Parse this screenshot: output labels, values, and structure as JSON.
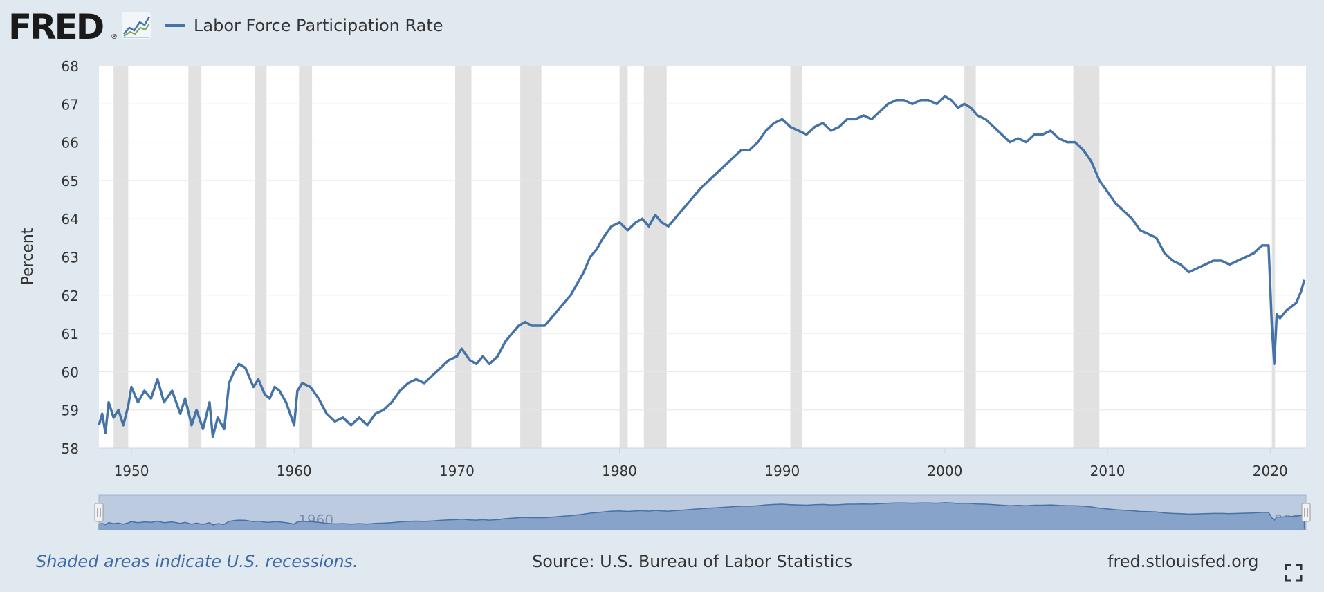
{
  "header": {
    "logo_text": "FRED",
    "logo_mark": "®",
    "logo_icon": "line-graph-icon",
    "legend_label": "Labor Force Participation Rate"
  },
  "colors": {
    "background": "#e1e9f0",
    "plot_background": "#ffffff",
    "series": "#4572a7",
    "recession": "#e1e1e1",
    "navigator": "#bccbe0",
    "navigator_area": "#88a3c9",
    "link": "#3e6aa8"
  },
  "footer": {
    "recession_note": "Shaded areas indicate U.S. recessions.",
    "source": "Source: U.S. Bureau of Labor Statistics",
    "site": "fred.stlouisfed.org",
    "fullscreen_icon": "expand-icon"
  },
  "chart_data": {
    "type": "line",
    "title": "",
    "xlabel": "",
    "ylabel": "Percent",
    "xlim": [
      1948,
      2022.2
    ],
    "ylim": [
      58,
      68
    ],
    "y_ticks": [
      58,
      59,
      60,
      61,
      62,
      63,
      64,
      65,
      66,
      67,
      68
    ],
    "x_ticks": [
      1950,
      1960,
      1970,
      1980,
      1990,
      2000,
      2010,
      2020
    ],
    "navigator_ticks": [
      "1960",
      "1980",
      "2000",
      "202"
    ],
    "grid": true,
    "legend": "top-left",
    "recessions": [
      [
        1948.9,
        1949.8
      ],
      [
        1953.5,
        1954.3
      ],
      [
        1957.6,
        1958.3
      ],
      [
        1960.3,
        1961.1
      ],
      [
        1969.9,
        1970.9
      ],
      [
        1973.9,
        1975.2
      ],
      [
        1980.0,
        1980.5
      ],
      [
        1981.5,
        1982.9
      ],
      [
        1990.5,
        1991.2
      ],
      [
        2001.2,
        2001.9
      ],
      [
        2007.9,
        2009.5
      ],
      [
        2020.1,
        2020.3
      ]
    ],
    "series": [
      {
        "name": "Labor Force Participation Rate",
        "x": [
          1948.0,
          1948.2,
          1948.4,
          1948.6,
          1948.9,
          1949.2,
          1949.5,
          1949.8,
          1950.0,
          1950.4,
          1950.8,
          1951.2,
          1951.6,
          1952.0,
          1952.5,
          1953.0,
          1953.3,
          1953.7,
          1954.0,
          1954.4,
          1954.8,
          1955.0,
          1955.3,
          1955.7,
          1956.0,
          1956.3,
          1956.6,
          1957.0,
          1957.5,
          1957.8,
          1958.2,
          1958.5,
          1958.8,
          1959.1,
          1959.5,
          1960.0,
          1960.2,
          1960.5,
          1961.0,
          1961.5,
          1962.0,
          1962.5,
          1963.0,
          1963.5,
          1964.0,
          1964.5,
          1965.0,
          1965.5,
          1966.0,
          1966.5,
          1967.0,
          1967.5,
          1968.0,
          1968.5,
          1969.0,
          1969.5,
          1970.0,
          1970.3,
          1970.8,
          1971.2,
          1971.6,
          1972.0,
          1972.5,
          1973.0,
          1973.4,
          1973.8,
          1974.2,
          1974.6,
          1975.0,
          1975.4,
          1975.8,
          1976.2,
          1976.6,
          1977.0,
          1977.4,
          1977.8,
          1978.2,
          1978.6,
          1979.0,
          1979.5,
          1980.0,
          1980.5,
          1981.0,
          1981.4,
          1981.8,
          1982.2,
          1982.6,
          1983.0,
          1983.4,
          1983.8,
          1984.2,
          1984.6,
          1985.0,
          1985.5,
          1986.0,
          1986.5,
          1987.0,
          1987.5,
          1988.0,
          1988.5,
          1989.0,
          1989.5,
          1990.0,
          1990.5,
          1991.0,
          1991.5,
          1992.0,
          1992.5,
          1993.0,
          1993.5,
          1994.0,
          1994.5,
          1995.0,
          1995.5,
          1996.0,
          1996.5,
          1997.0,
          1997.5,
          1998.0,
          1998.5,
          1999.0,
          1999.5,
          2000.0,
          2000.4,
          2000.8,
          2001.2,
          2001.6,
          2002.0,
          2002.5,
          2003.0,
          2003.5,
          2004.0,
          2004.5,
          2005.0,
          2005.5,
          2006.0,
          2006.5,
          2007.0,
          2007.5,
          2008.0,
          2008.5,
          2009.0,
          2009.5,
          2010.0,
          2010.5,
          2011.0,
          2011.5,
          2012.0,
          2012.5,
          2013.0,
          2013.5,
          2014.0,
          2014.5,
          2015.0,
          2015.5,
          2016.0,
          2016.5,
          2017.0,
          2017.5,
          2018.0,
          2018.5,
          2019.0,
          2019.5,
          2019.9,
          2020.1,
          2020.25,
          2020.4,
          2020.6,
          2020.8,
          2021.0,
          2021.3,
          2021.6,
          2021.9,
          2022.1
        ],
        "y": [
          58.6,
          58.9,
          58.4,
          59.2,
          58.8,
          59.0,
          58.6,
          59.1,
          59.6,
          59.2,
          59.5,
          59.3,
          59.8,
          59.2,
          59.5,
          58.9,
          59.3,
          58.6,
          59.0,
          58.5,
          59.2,
          58.3,
          58.8,
          58.5,
          59.7,
          60.0,
          60.2,
          60.1,
          59.6,
          59.8,
          59.4,
          59.3,
          59.6,
          59.5,
          59.2,
          58.6,
          59.5,
          59.7,
          59.6,
          59.3,
          58.9,
          58.7,
          58.8,
          58.6,
          58.8,
          58.6,
          58.9,
          59.0,
          59.2,
          59.5,
          59.7,
          59.8,
          59.7,
          59.9,
          60.1,
          60.3,
          60.4,
          60.6,
          60.3,
          60.2,
          60.4,
          60.2,
          60.4,
          60.8,
          61.0,
          61.2,
          61.3,
          61.2,
          61.2,
          61.2,
          61.4,
          61.6,
          61.8,
          62.0,
          62.3,
          62.6,
          63.0,
          63.2,
          63.5,
          63.8,
          63.9,
          63.7,
          63.9,
          64.0,
          63.8,
          64.1,
          63.9,
          63.8,
          64.0,
          64.2,
          64.4,
          64.6,
          64.8,
          65.0,
          65.2,
          65.4,
          65.6,
          65.8,
          65.8,
          66.0,
          66.3,
          66.5,
          66.6,
          66.4,
          66.3,
          66.2,
          66.4,
          66.5,
          66.3,
          66.4,
          66.6,
          66.6,
          66.7,
          66.6,
          66.8,
          67.0,
          67.1,
          67.1,
          67.0,
          67.1,
          67.1,
          67.0,
          67.2,
          67.1,
          66.9,
          67.0,
          66.9,
          66.7,
          66.6,
          66.4,
          66.2,
          66.0,
          66.1,
          66.0,
          66.2,
          66.2,
          66.3,
          66.1,
          66.0,
          66.0,
          65.8,
          65.5,
          65.0,
          64.7,
          64.4,
          64.2,
          64.0,
          63.7,
          63.6,
          63.5,
          63.1,
          62.9,
          62.8,
          62.6,
          62.7,
          62.8,
          62.9,
          62.9,
          62.8,
          62.9,
          63.0,
          63.1,
          63.3,
          63.3,
          61.2,
          60.2,
          61.5,
          61.4,
          61.5,
          61.6,
          61.7,
          61.8,
          62.1,
          62.4
        ]
      }
    ]
  }
}
